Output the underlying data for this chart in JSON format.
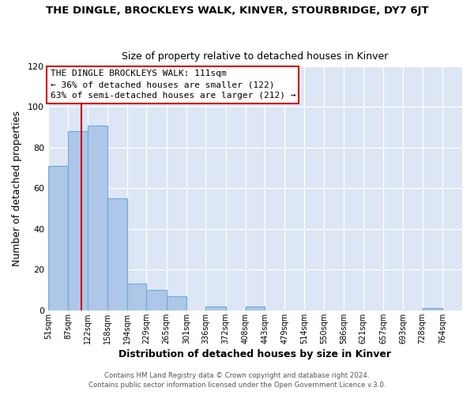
{
  "title": "THE DINGLE, BROCKLEYS WALK, KINVER, STOURBRIDGE, DY7 6JT",
  "subtitle": "Size of property relative to detached houses in Kinver",
  "xlabel": "Distribution of detached houses by size in Kinver",
  "ylabel": "Number of detached properties",
  "bar_color": "#aec6e8",
  "bar_edge_color": "#6aadd5",
  "bg_color": "#dce6f5",
  "grid_color": "#ffffff",
  "fig_bg_color": "#ffffff",
  "bin_labels": [
    "51sqm",
    "87sqm",
    "122sqm",
    "158sqm",
    "194sqm",
    "229sqm",
    "265sqm",
    "301sqm",
    "336sqm",
    "372sqm",
    "408sqm",
    "443sqm",
    "479sqm",
    "514sqm",
    "550sqm",
    "586sqm",
    "621sqm",
    "657sqm",
    "693sqm",
    "728sqm",
    "764sqm"
  ],
  "bin_edges": [
    51,
    87,
    122,
    158,
    194,
    229,
    265,
    301,
    336,
    372,
    408,
    443,
    479,
    514,
    550,
    586,
    621,
    657,
    693,
    728,
    764
  ],
  "bar_heights": [
    71,
    88,
    91,
    55,
    13,
    10,
    7,
    0,
    2,
    0,
    2,
    0,
    0,
    0,
    0,
    0,
    0,
    0,
    0,
    1,
    0
  ],
  "vline_x": 111,
  "vline_color": "#cc0000",
  "ylim": [
    0,
    120
  ],
  "yticks": [
    0,
    20,
    40,
    60,
    80,
    100,
    120
  ],
  "annotation_title": "THE DINGLE BROCKLEYS WALK: 111sqm",
  "annotation_line1": "← 36% of detached houses are smaller (122)",
  "annotation_line2": "63% of semi-detached houses are larger (212) →",
  "footer1": "Contains HM Land Registry data © Crown copyright and database right 2024.",
  "footer2": "Contains public sector information licensed under the Open Government Licence v.3.0."
}
